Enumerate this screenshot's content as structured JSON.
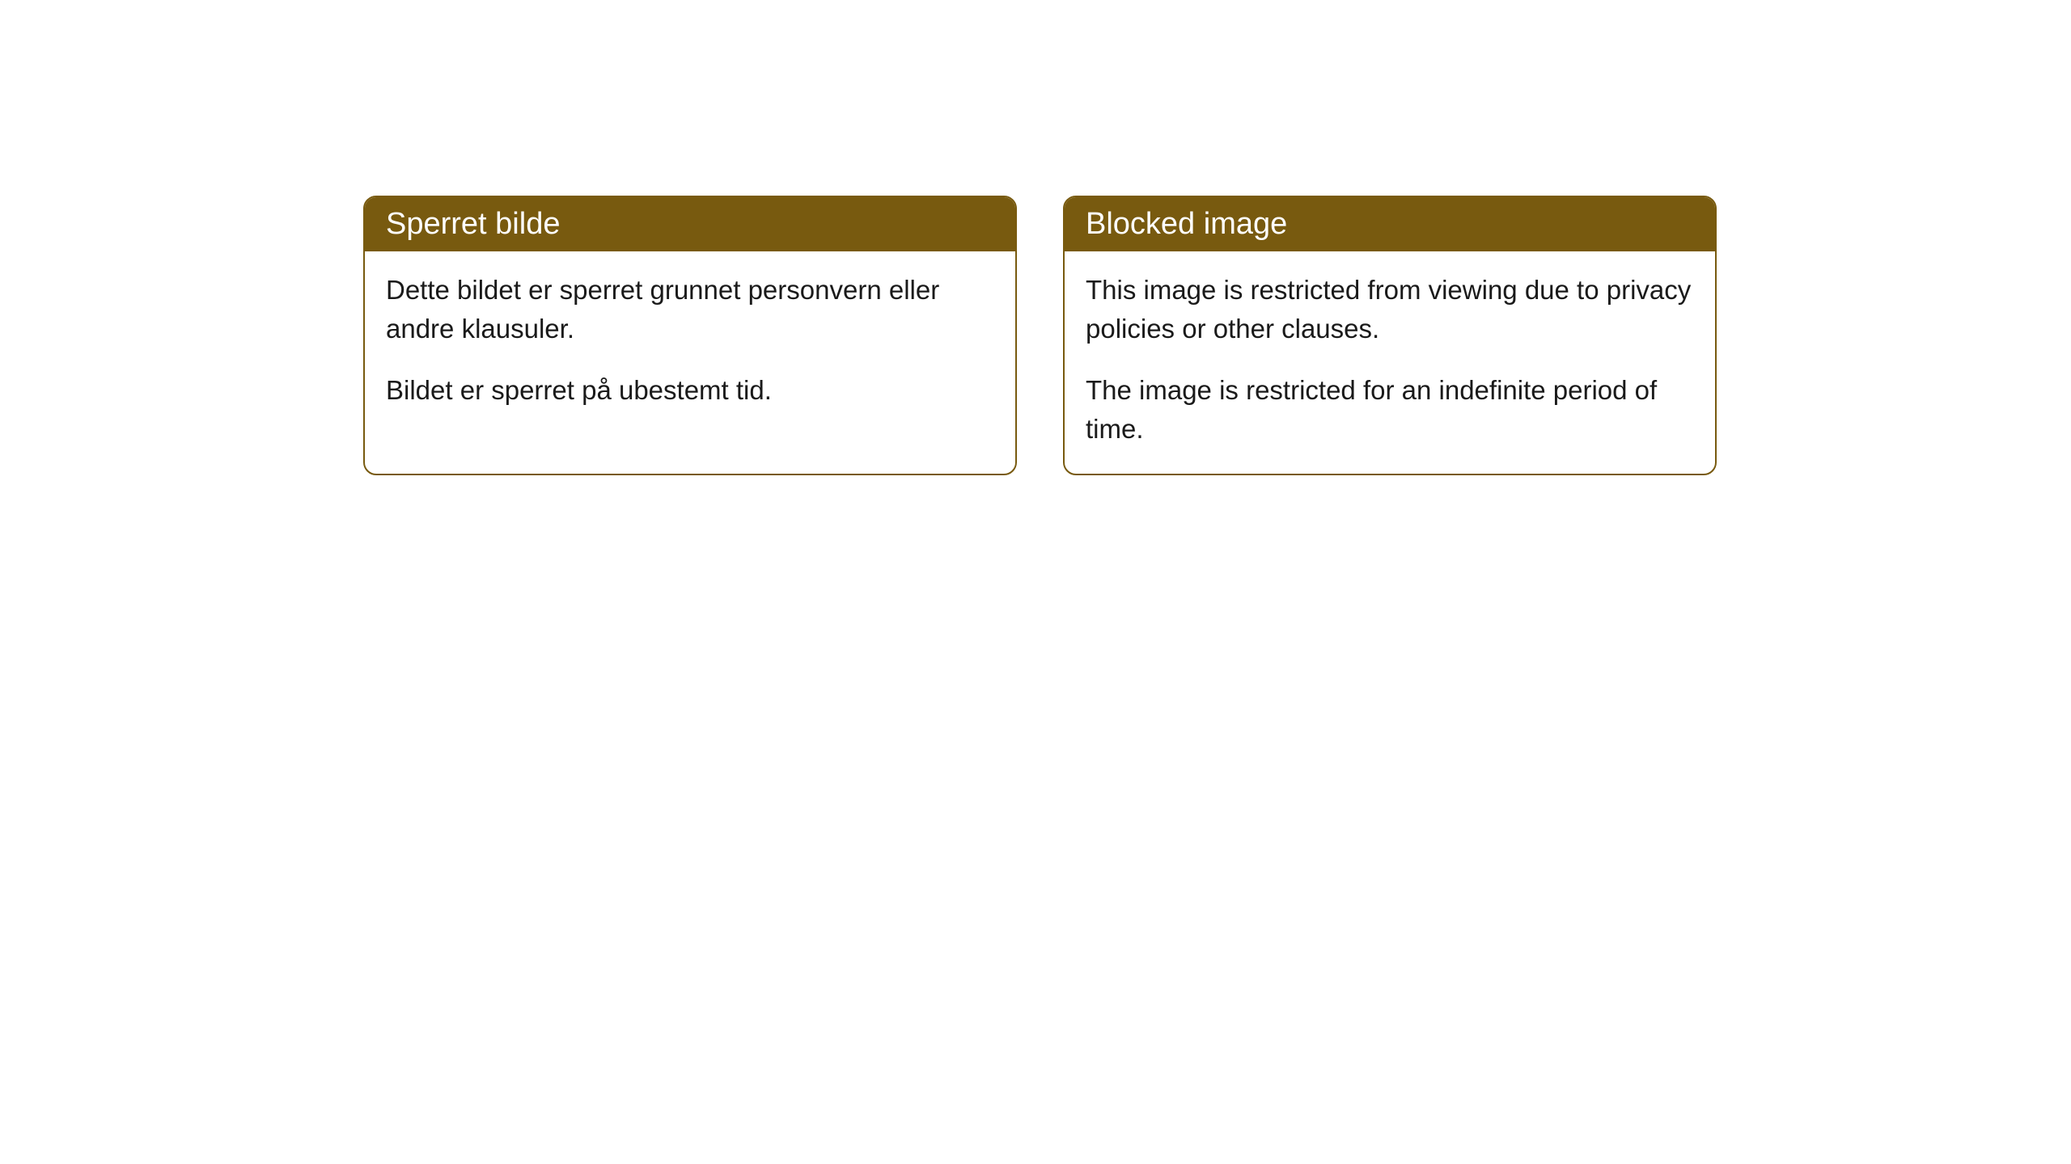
{
  "cards": [
    {
      "title": "Sperret bilde",
      "paragraph1": "Dette bildet er sperret grunnet personvern eller andre klausuler.",
      "paragraph2": "Bildet er sperret på ubestemt tid."
    },
    {
      "title": "Blocked image",
      "paragraph1": "This image is restricted from viewing due to privacy policies or other clauses.",
      "paragraph2": "The image is restricted for an indefinite period of time."
    }
  ],
  "styling": {
    "header_bg_color": "#785a0f",
    "header_text_color": "#ffffff",
    "border_color": "#785a0f",
    "body_bg_color": "#ffffff",
    "body_text_color": "#1a1a1a",
    "border_radius": 16,
    "header_fontsize": 38,
    "body_fontsize": 33
  }
}
